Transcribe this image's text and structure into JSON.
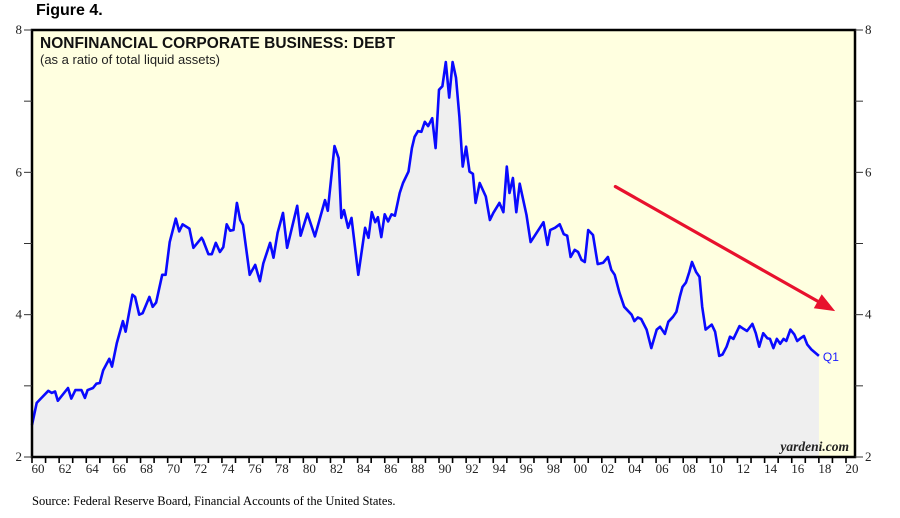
{
  "figure_label": "Figure 4.",
  "source": "Source: Federal Reserve Board, Financial Accounts of the United States.",
  "colors": {
    "plot_background": "#ffffe0",
    "area_fill": "#efefef",
    "line": "#0a0aff",
    "arrow": "#e8112d",
    "frame": "#000000"
  },
  "chart_data": {
    "type": "area",
    "title": "NONFINANCIAL CORPORATE BUSINESS: DEBT",
    "subtitle": "(as a ratio of total liquid assets)",
    "xlabel": "",
    "ylabel": "",
    "xlim": [
      1960,
      2020
    ],
    "ylim": [
      2,
      8
    ],
    "x_tick_labels": [
      "60",
      "62",
      "64",
      "66",
      "68",
      "70",
      "72",
      "74",
      "76",
      "78",
      "80",
      "82",
      "84",
      "86",
      "88",
      "90",
      "92",
      "94",
      "96",
      "98",
      "00",
      "02",
      "04",
      "06",
      "08",
      "10",
      "12",
      "14",
      "16",
      "18",
      "20"
    ],
    "y_tick_labels_left": [
      "2",
      "4",
      "6",
      "8"
    ],
    "y_tick_labels_right": [
      "2",
      "4",
      "6",
      "8"
    ],
    "end_label": "Q1",
    "watermark": "yardeni.com",
    "annotation": "red downward trend arrow from 2003 to 2019",
    "arrow": {
      "from": [
        2003.0,
        5.8
      ],
      "to": [
        2019.2,
        4.05
      ]
    },
    "series": [
      {
        "name": "Debt / total liquid assets",
        "x": [
          1960.0,
          1960.35,
          1960.7,
          1961.2,
          1961.45,
          1961.7,
          1961.9,
          1962.65,
          1962.9,
          1963.2,
          1963.65,
          1963.9,
          1964.1,
          1964.5,
          1964.75,
          1965.0,
          1965.25,
          1965.7,
          1965.9,
          1966.25,
          1966.7,
          1966.9,
          1967.4,
          1967.6,
          1967.9,
          1968.15,
          1968.65,
          1968.9,
          1969.15,
          1969.6,
          1969.85,
          1970.15,
          1970.6,
          1970.85,
          1971.1,
          1971.6,
          1971.9,
          1972.5,
          1972.6,
          1973.0,
          1973.25,
          1973.55,
          1973.85,
          1974.1,
          1974.35,
          1974.6,
          1974.85,
          1975.1,
          1975.35,
          1975.55,
          1976.05,
          1976.45,
          1976.8,
          1977.05,
          1977.55,
          1977.8,
          1978.1,
          1978.5,
          1978.8,
          1979.55,
          1979.8,
          1980.3,
          1980.85,
          1981.6,
          1981.8,
          1982.3,
          1982.6,
          1982.8,
          1983.0,
          1983.3,
          1983.55,
          1984.05,
          1984.55,
          1984.8,
          1985.05,
          1985.3,
          1985.5,
          1985.75,
          1986.0,
          1986.25,
          1986.5,
          1986.75,
          1987.1,
          1987.35,
          1987.75,
          1988.0,
          1988.2,
          1988.45,
          1988.7,
          1988.95,
          1989.2,
          1989.5,
          1989.75,
          1990.0,
          1990.25,
          1990.5,
          1990.75,
          1991.0,
          1991.25,
          1991.5,
          1991.75,
          1992.0,
          1992.25,
          1992.5,
          1992.7,
          1993.0,
          1993.45,
          1993.75,
          1994.0,
          1994.45,
          1994.75,
          1995.0,
          1995.2,
          1995.45,
          1995.7,
          1995.95,
          1996.45,
          1996.75,
          1997.7,
          1998.0,
          1998.2,
          1998.55,
          1998.9,
          1999.2,
          1999.45,
          1999.7,
          2000.0,
          2000.25,
          2000.5,
          2000.75,
          2001.0,
          2001.35,
          2001.7,
          2002.1,
          2002.45,
          2002.7,
          2002.95,
          2003.3,
          2003.65,
          2004.2,
          2004.4,
          2004.65,
          2004.9,
          2005.3,
          2005.65,
          2006.05,
          2006.3,
          2006.65,
          2006.9,
          2007.25,
          2007.5,
          2007.75,
          2007.95,
          2008.2,
          2008.45,
          2008.65,
          2008.95,
          2009.2,
          2009.4,
          2009.65,
          2010.1,
          2010.35,
          2010.65,
          2010.9,
          2011.2,
          2011.45,
          2011.7,
          2012.15,
          2012.45,
          2012.7,
          2013.1,
          2013.35,
          2013.6,
          2013.9,
          2014.2,
          2014.4,
          2014.65,
          2014.9,
          2015.15,
          2015.4,
          2015.6,
          2015.9,
          2016.2,
          2016.4,
          2016.65,
          2016.9,
          2017.15,
          2017.45,
          2018.0
        ],
        "values": [
          2.45,
          2.76,
          2.83,
          2.93,
          2.9,
          2.92,
          2.79,
          2.97,
          2.82,
          2.94,
          2.94,
          2.83,
          2.94,
          2.97,
          3.03,
          3.04,
          3.22,
          3.38,
          3.27,
          3.6,
          3.91,
          3.76,
          4.28,
          4.25,
          4.0,
          4.02,
          4.25,
          4.11,
          4.17,
          4.56,
          4.56,
          5.02,
          5.35,
          5.17,
          5.27,
          5.21,
          4.94,
          5.08,
          5.05,
          4.85,
          4.85,
          5.01,
          4.88,
          4.95,
          5.27,
          5.18,
          5.19,
          5.57,
          5.33,
          5.26,
          4.56,
          4.7,
          4.47,
          4.72,
          5.01,
          4.8,
          5.15,
          5.43,
          4.94,
          5.53,
          5.11,
          5.42,
          5.1,
          5.61,
          5.46,
          6.37,
          6.2,
          5.36,
          5.47,
          5.22,
          5.36,
          4.56,
          5.22,
          5.08,
          5.44,
          5.3,
          5.37,
          5.09,
          5.41,
          5.31,
          5.41,
          5.39,
          5.71,
          5.85,
          6.01,
          6.34,
          6.5,
          6.58,
          6.57,
          6.71,
          6.65,
          6.76,
          6.34,
          7.16,
          7.21,
          7.55,
          7.05,
          7.55,
          7.33,
          6.78,
          6.08,
          6.36,
          6.01,
          5.98,
          5.57,
          5.85,
          5.66,
          5.33,
          5.43,
          5.57,
          5.44,
          6.08,
          5.71,
          5.92,
          5.44,
          5.84,
          5.4,
          5.02,
          5.3,
          4.98,
          5.19,
          5.22,
          5.27,
          5.13,
          5.11,
          4.81,
          4.91,
          4.88,
          4.77,
          4.74,
          5.19,
          5.12,
          4.71,
          4.73,
          4.81,
          4.63,
          4.56,
          4.31,
          4.11,
          4.0,
          3.91,
          3.96,
          3.94,
          3.79,
          3.53,
          3.79,
          3.83,
          3.73,
          3.9,
          3.97,
          4.04,
          4.25,
          4.39,
          4.45,
          4.6,
          4.74,
          4.6,
          4.53,
          4.11,
          3.79,
          3.86,
          3.76,
          3.42,
          3.44,
          3.55,
          3.69,
          3.66,
          3.84,
          3.8,
          3.77,
          3.87,
          3.74,
          3.55,
          3.74,
          3.67,
          3.66,
          3.53,
          3.66,
          3.59,
          3.66,
          3.63,
          3.79,
          3.72,
          3.63,
          3.67,
          3.7,
          3.58,
          3.51,
          3.42
        ]
      }
    ]
  }
}
